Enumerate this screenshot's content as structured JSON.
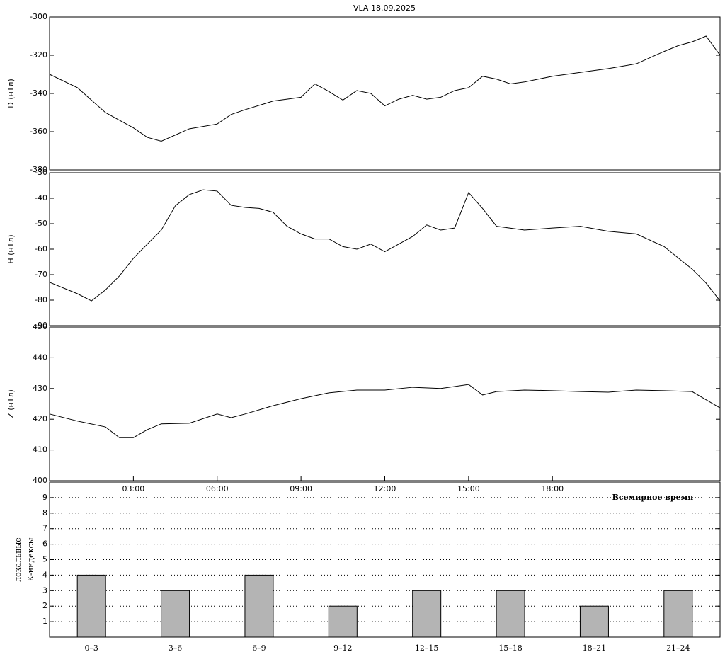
{
  "chart_data": [
    {
      "type": "line",
      "title": "VLA   18.09.2025",
      "ylabel": "D (нТл)",
      "color": "#000000",
      "xlim": [
        0,
        24
      ],
      "ylim": [
        -380,
        -300
      ],
      "yticks": [
        -300,
        -320,
        -340,
        -360,
        -380
      ],
      "x": [
        0,
        1,
        2,
        2.5,
        3,
        3.5,
        4,
        5,
        6,
        6.5,
        7,
        8,
        8.5,
        9,
        9.5,
        10,
        10.5,
        11,
        11.5,
        12,
        12.5,
        13,
        13.5,
        14,
        14.5,
        15,
        15.5,
        16,
        16.5,
        17,
        18,
        19,
        20,
        21,
        22,
        22.5,
        23,
        23.5,
        24
      ],
      "values": [
        -330,
        -337,
        -350,
        -354,
        -358,
        -363,
        -365,
        -358.5,
        -356,
        -351,
        -348.5,
        -344,
        -343,
        -342,
        -335,
        -339,
        -343.5,
        -338.5,
        -340,
        -346.5,
        -343,
        -341,
        -343,
        -342,
        -338.5,
        -337,
        -331,
        -332.5,
        -335,
        -334,
        -331,
        -329,
        -327,
        -324.5,
        -318,
        -315,
        -313,
        -310,
        -320
      ]
    },
    {
      "type": "line",
      "ylabel": "H (нТл)",
      "color": "#000000",
      "xlim": [
        0,
        24
      ],
      "ylim": [
        -90,
        -30
      ],
      "yticks": [
        -30,
        -40,
        -50,
        -60,
        -70,
        -80,
        -90
      ],
      "x": [
        0,
        1,
        1.5,
        2,
        2.5,
        3,
        3.5,
        4,
        4.5,
        5,
        5.5,
        6,
        6.5,
        7,
        7.5,
        8,
        8.5,
        9,
        9.5,
        10,
        10.5,
        11,
        11.5,
        12,
        12.5,
        13,
        13.5,
        14,
        14.5,
        15,
        15.5,
        16,
        17,
        18,
        19,
        20,
        21,
        22,
        23,
        23.5,
        24
      ],
      "values": [
        -73,
        -77.5,
        -80.3,
        -76,
        -70.5,
        -63.6,
        -58,
        -52.5,
        -43,
        -38.6,
        -36.7,
        -37.2,
        -42.8,
        -43.6,
        -44,
        -45.5,
        -51,
        -54,
        -56,
        -56,
        -59,
        -60,
        -58,
        -61,
        -58,
        -55,
        -50.5,
        -52.5,
        -51.7,
        -37.8,
        -44,
        -51,
        -52.5,
        -51.7,
        -51,
        -53,
        -54,
        -59,
        -67.8,
        -73.3,
        -80.3
      ]
    },
    {
      "type": "line",
      "ylabel": "Z (нТл)",
      "xlabel": "Всемирное время",
      "color": "#000000",
      "xlim": [
        0,
        24
      ],
      "ylim": [
        400,
        450
      ],
      "yticks": [
        400,
        410,
        420,
        430,
        440,
        450
      ],
      "xticks": [
        {
          "value": 3,
          "label": "03:00"
        },
        {
          "value": 6,
          "label": "06:00"
        },
        {
          "value": 9,
          "label": "09:00"
        },
        {
          "value": 12,
          "label": "12:00"
        },
        {
          "value": 15,
          "label": "15:00"
        },
        {
          "value": 18,
          "label": "18:00"
        }
      ],
      "x": [
        0,
        1,
        2,
        2.5,
        3,
        3.5,
        4,
        5,
        6,
        6.5,
        7,
        8,
        9,
        10,
        11,
        12,
        13,
        14,
        15,
        15.5,
        16,
        17,
        18,
        19,
        20,
        21,
        22,
        23,
        24
      ],
      "values": [
        421.7,
        419.4,
        417.5,
        414,
        414,
        416.6,
        418.5,
        418.7,
        421.7,
        420.5,
        421.7,
        424.4,
        426.7,
        428.6,
        429.5,
        429.5,
        430.4,
        430,
        431.3,
        427.9,
        429,
        429.5,
        429.3,
        429,
        428.8,
        429.5,
        429.3,
        429,
        423.7
      ]
    },
    {
      "type": "bar",
      "ylabel": [
        "локальные",
        "К-индексы"
      ],
      "color": "#b4b4b4",
      "grid": true,
      "ylim": [
        0,
        10
      ],
      "yticks": [
        1,
        2,
        3,
        4,
        5,
        6,
        7,
        8,
        9
      ],
      "categories": [
        "0–3",
        "3–6",
        "6–9",
        "9–12",
        "12–15",
        "15–18",
        "18–21",
        "21–24"
      ],
      "values": [
        4,
        3,
        4,
        2,
        3,
        3,
        2,
        3
      ]
    }
  ]
}
